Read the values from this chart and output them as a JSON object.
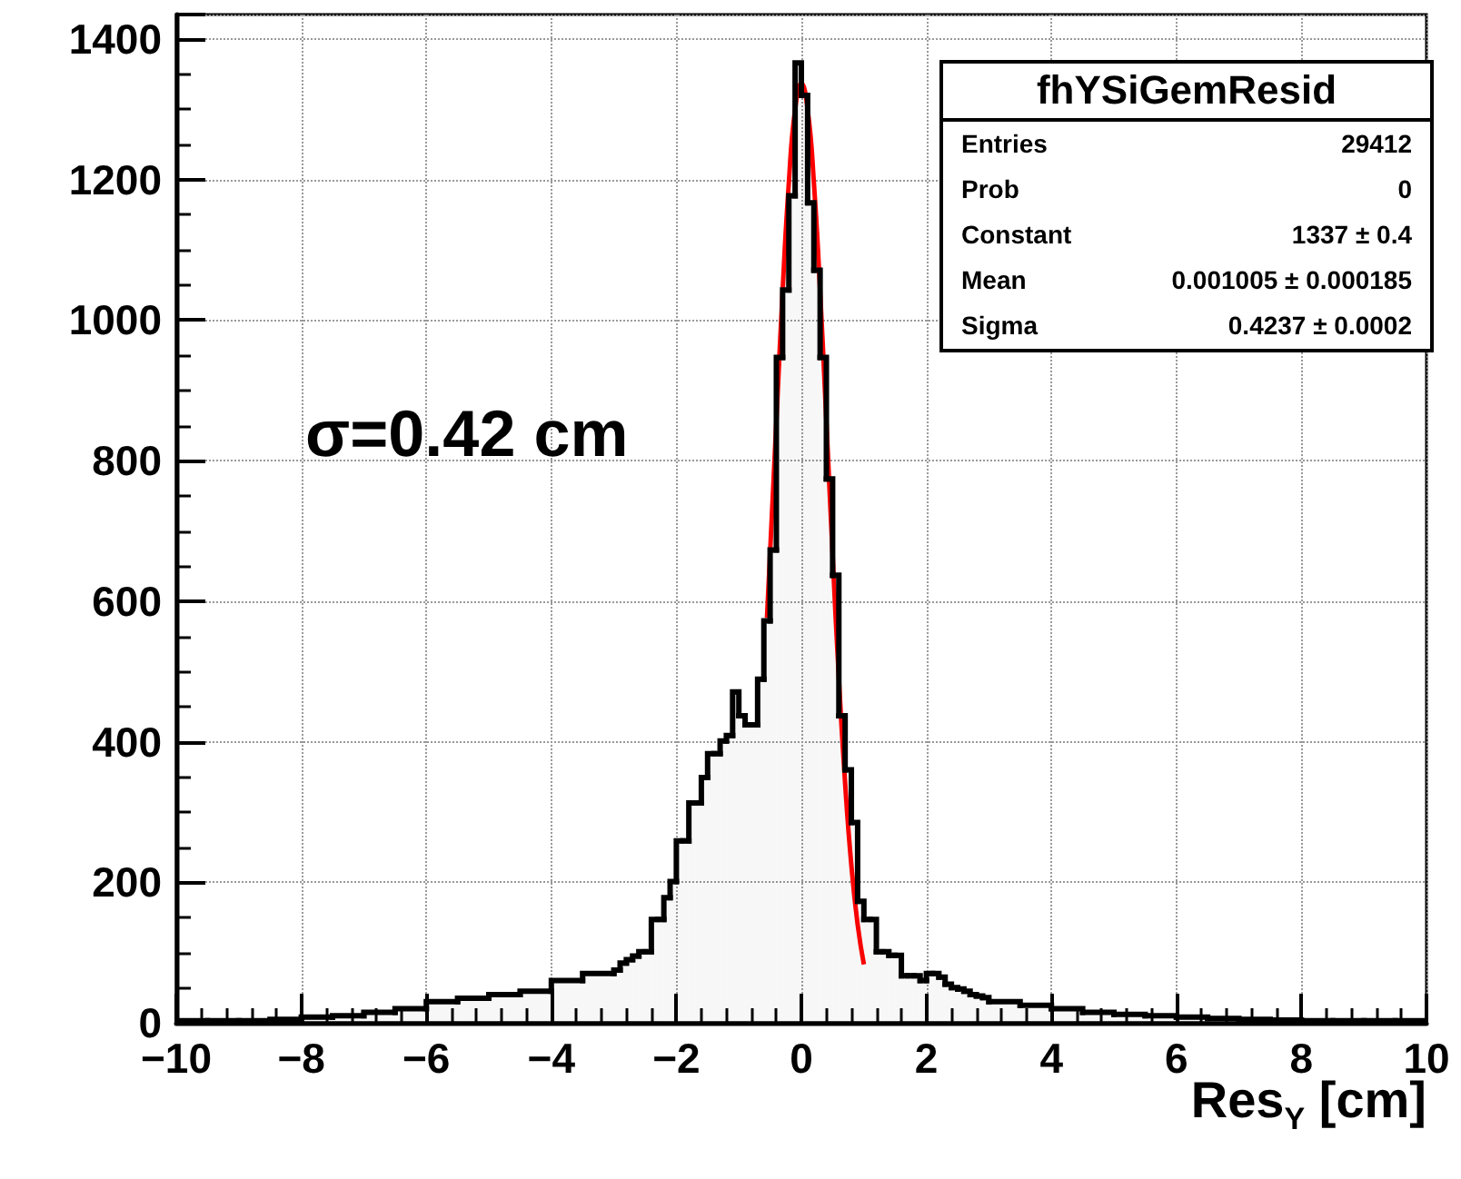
{
  "chart_data": {
    "type": "histogram",
    "xlabel": "Res$_{Y}$ [cm]",
    "xlim": [
      -10,
      10
    ],
    "xticks": [
      -10,
      -8,
      -6,
      -4,
      -2,
      0,
      2,
      4,
      6,
      8,
      10
    ],
    "ylim": [
      0,
      1435
    ],
    "yticks": [
      0,
      200,
      400,
      600,
      800,
      1000,
      1200,
      1400
    ],
    "grid": true,
    "annotations": [
      "σ=0.42 cm",
      "fhYSiGemResid",
      "Entries",
      "29412",
      "Prob",
      "0",
      "Constant",
      "1337 ± 0.4",
      "Mean",
      "0.001005 ± 0.000185",
      "Sigma",
      "0.4237 ± 0.0002"
    ],
    "series": [
      {
        "type": "histogram",
        "color": "#000000",
        "bins": [
          -10,
          -9.5,
          -9,
          -8.5,
          -8,
          -7.5,
          -7,
          -6.5,
          -6,
          -5.5,
          -5,
          -4.5,
          -4,
          -3.5,
          -3,
          -2.9,
          -2.8,
          -2.7,
          -2.6,
          -2.5,
          -2.4,
          -2.3,
          -2.2,
          -2.1,
          -2,
          -1.9,
          -1.8,
          -1.7,
          -1.6,
          -1.5,
          -1.4,
          -1.3,
          -1.2,
          -1.1,
          -1,
          -0.9,
          -0.8,
          -0.7,
          -0.6,
          -0.5,
          -0.4,
          -0.3,
          -0.2,
          -0.1,
          0,
          0.1,
          0.2,
          0.3,
          0.4,
          0.5,
          0.6,
          0.7,
          0.8,
          0.9,
          1,
          1.1,
          1.2,
          1.3,
          1.4,
          1.5,
          1.6,
          1.7,
          1.8,
          1.9,
          2,
          2.1,
          2.2,
          2.3,
          2.4,
          2.5,
          2.6,
          2.7,
          2.8,
          2.9,
          3,
          3.5,
          4,
          4.5,
          5,
          5.5,
          6,
          6.5,
          7,
          7.5,
          8,
          8.5,
          9,
          9.5,
          10
        ],
        "values": [
          3,
          3,
          3,
          5,
          8,
          10,
          15,
          20,
          30,
          35,
          40,
          45,
          60,
          70,
          75,
          85,
          90,
          95,
          101,
          101,
          147,
          147,
          178,
          201,
          259,
          259,
          313,
          313,
          349,
          383,
          383,
          401,
          409,
          471,
          437,
          424,
          424,
          489,
          572,
          673,
          947,
          1043,
          1177,
          1366,
          1320,
          1167,
          1071,
          947,
          774,
          637,
          437,
          360,
          285,
          173,
          147,
          147,
          101,
          101,
          96,
          96,
          67,
          67,
          67,
          60,
          70,
          70,
          65,
          55,
          50,
          48,
          45,
          40,
          38,
          36,
          30,
          25,
          20,
          15,
          12,
          10,
          8,
          6,
          5,
          4,
          3,
          3,
          3,
          3
        ]
      },
      {
        "type": "line",
        "color": "#ff0000",
        "x": [
          -0.55,
          -0.4,
          -0.3,
          -0.2,
          -0.1,
          0,
          0.1,
          0.2,
          0.3,
          0.4,
          0.5,
          0.6,
          0.7,
          0.8,
          0.9,
          1.0
        ],
        "values": [
          576,
          856,
          1041,
          1196,
          1300,
          1337,
          1300,
          1196,
          1041,
          856,
          666,
          490,
          341,
          224,
          140,
          83
        ]
      }
    ]
  }
}
